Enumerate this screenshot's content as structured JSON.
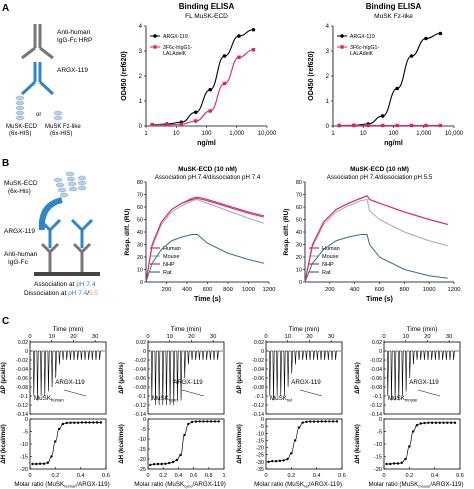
{
  "panel_letters": {
    "a": "A",
    "b": "B",
    "c": "C"
  },
  "schematic_a": {
    "anti_human_1": "Anti-human",
    "anti_human_2": "IgG-Fc HRP",
    "argx": "ARGX-119",
    "or": "or",
    "ecd_1": "MuSK-ECD",
    "ecd_2": "(6x-HIS)",
    "fz_1": "MuSK Fz-like",
    "fz_2": "(6x-HIS)"
  },
  "schematic_b": {
    "musk_1": "MuSK-ECD",
    "musk_2": "(6x-His)",
    "argx": "ARGX-119",
    "anti_1": "Anti-human",
    "anti_2": "IgG-Fc",
    "assoc_prefix": "Association at ",
    "assoc_ph": "pH 7.4",
    "dissoc_prefix": "Dissociation at ",
    "dissoc_ph1": "pH 7.4",
    "dissoc_sep": "/",
    "dissoc_ph2": "5.5"
  },
  "colors": {
    "argx": "#000000",
    "control": "#e0206e",
    "human": "#b4368a",
    "mouse": "#aaaaaa",
    "nhp": "#e0206e",
    "rat": "#3a6e8c",
    "schematic_blue": "#2e86c8",
    "ph74": "#2e86c8",
    "ph55": "#f0a030"
  },
  "chart_data": [
    {
      "type": "line",
      "title": "Binding ELISA",
      "subtitle": "FL MuSK-ECD",
      "xlabel": "ng/ml",
      "ylabel": "OD450 (ref620)",
      "xscale": "log",
      "xlim": [
        1,
        10000
      ],
      "xticks": [
        1,
        10,
        100,
        1000,
        10000
      ],
      "xtick_labels": [
        "1",
        "10",
        "100",
        "1,000",
        "10,000"
      ],
      "ylim": [
        0,
        4
      ],
      "yticks": [
        0,
        1,
        2,
        3,
        4
      ],
      "legend": "top-left",
      "series": [
        {
          "name": "ARGX-119",
          "x": [
            1.6,
            4.9,
            14.6,
            44,
            132,
            395,
            1185,
            3556
          ],
          "y": [
            0.05,
            0.08,
            0.15,
            0.55,
            1.45,
            2.8,
            3.6,
            3.85
          ]
        },
        {
          "name": "3F6c-hIgG1-LALAdelK",
          "x": [
            1.6,
            4.9,
            14.6,
            44,
            132,
            395,
            1185,
            3556
          ],
          "y": [
            0.05,
            0.05,
            0.07,
            0.2,
            0.6,
            1.7,
            2.75,
            3.05
          ]
        }
      ]
    },
    {
      "type": "line",
      "title": "Binding ELISA",
      "subtitle": "MuSK Fz-like",
      "xlabel": "ng/ml",
      "ylabel": "OD450 (ref620)",
      "xscale": "log",
      "xlim": [
        1,
        10000
      ],
      "xticks": [
        1,
        10,
        100,
        1000,
        10000
      ],
      "xtick_labels": [
        "1",
        "10",
        "100",
        "1,000",
        "10,000"
      ],
      "ylim": [
        0,
        4
      ],
      "yticks": [
        0,
        1,
        2,
        3,
        4
      ],
      "legend": "top-left",
      "series": [
        {
          "name": "ARGX-119",
          "x": [
            1.6,
            4.9,
            14.6,
            44,
            132,
            395,
            1185,
            3556
          ],
          "y": [
            0.02,
            0.03,
            0.08,
            0.4,
            1.5,
            2.8,
            3.5,
            3.7
          ]
        },
        {
          "name": "3F6c-hIgG1-LALAdelK",
          "x": [
            1.6,
            4.9,
            14.6,
            44,
            132,
            395,
            1185,
            3556
          ],
          "y": [
            0.02,
            0.02,
            0.02,
            0.02,
            0.02,
            0.02,
            0.02,
            0.02
          ]
        }
      ]
    },
    {
      "type": "line",
      "title": "MuSK-ECD (10 nM)",
      "subtitle": "Association pH 7.4/dissociation pH 7.4",
      "xlabel": "Time (s)",
      "ylabel": "Resp. diff. (RU)",
      "xlim": [
        0,
        1200
      ],
      "xticks": [
        200,
        400,
        600,
        800,
        1000,
        1200
      ],
      "ylim": [
        0,
        80
      ],
      "yticks": [
        0,
        10,
        20,
        30,
        40,
        50,
        60,
        70,
        80
      ],
      "legend": "bottom-left",
      "series": [
        {
          "name": "Human",
          "x": [
            0,
            60,
            150,
            250,
            350,
            450,
            500,
            600,
            800,
            1000,
            1150
          ],
          "y": [
            0,
            30,
            48,
            58,
            63,
            67,
            68,
            66,
            61,
            56,
            53
          ]
        },
        {
          "name": "Mouse",
          "x": [
            0,
            60,
            150,
            250,
            350,
            450,
            500,
            600,
            800,
            1000,
            1150
          ],
          "y": [
            0,
            28,
            46,
            56,
            61,
            65,
            66,
            63,
            57,
            51,
            47
          ]
        },
        {
          "name": "NHP",
          "x": [
            0,
            60,
            150,
            250,
            350,
            450,
            500,
            600,
            800,
            1000,
            1150
          ],
          "y": [
            0,
            30,
            48,
            58,
            63,
            66,
            67,
            65,
            60,
            55,
            52
          ]
        },
        {
          "name": "Rat",
          "x": [
            0,
            60,
            150,
            250,
            350,
            450,
            500,
            600,
            800,
            1000,
            1150
          ],
          "y": [
            0,
            15,
            26,
            33,
            36,
            38,
            38,
            31,
            23,
            18,
            15
          ]
        }
      ]
    },
    {
      "type": "line",
      "title": "MuSK-ECD (10 nM)",
      "subtitle": "Association pH 7.4/dissociation pH 5.5",
      "xlabel": "Time (s)",
      "ylabel": "Resp. diff. (RU)",
      "xlim": [
        0,
        1200
      ],
      "xticks": [
        200,
        400,
        600,
        800,
        1000,
        1200
      ],
      "ylim": [
        0,
        80
      ],
      "yticks": [
        0,
        10,
        20,
        30,
        40,
        50,
        60,
        70,
        80
      ],
      "legend": "bottom-left",
      "series": [
        {
          "name": "Human",
          "x": [
            0,
            60,
            150,
            250,
            350,
            450,
            500,
            520,
            600,
            800,
            1000,
            1150
          ],
          "y": [
            0,
            30,
            48,
            58,
            63,
            67,
            69,
            66,
            63,
            56,
            50,
            46
          ]
        },
        {
          "name": "Mouse",
          "x": [
            0,
            60,
            150,
            250,
            350,
            450,
            500,
            520,
            600,
            800,
            1000,
            1150
          ],
          "y": [
            0,
            28,
            46,
            56,
            61,
            65,
            66,
            57,
            50,
            40,
            33,
            29
          ]
        },
        {
          "name": "NHP",
          "x": [
            0,
            60,
            150,
            250,
            350,
            450,
            500,
            520,
            600,
            800,
            1000,
            1150
          ],
          "y": [
            0,
            30,
            48,
            58,
            63,
            67,
            69,
            66,
            63,
            56,
            50,
            46
          ]
        },
        {
          "name": "Rat",
          "x": [
            0,
            60,
            150,
            250,
            350,
            450,
            500,
            520,
            600,
            800,
            1000,
            1150
          ],
          "y": [
            0,
            15,
            26,
            33,
            36,
            38,
            38,
            30,
            20,
            10,
            5,
            3
          ]
        }
      ]
    },
    {
      "type": "line",
      "panel": "ITC",
      "top": {
        "xlabel": "Time (min)",
        "ylabel": "ΔP (µcal/s)",
        "xlim": [
          0,
          35
        ],
        "xticks": [
          0,
          10,
          20,
          30
        ],
        "ylim": [
          -0.14,
          0.02
        ],
        "yticks": [
          0.02,
          0.0,
          -0.02,
          -0.04,
          -0.06,
          -0.08,
          -0.1,
          -0.12,
          -0.14
        ],
        "ytick_labels": [
          "0.02",
          "0",
          "-0.02",
          "-0.04",
          "-0.06",
          "-0.08",
          "-0.1",
          "-0.12",
          "-0.14"
        ],
        "inset_label": "ARGX-119",
        "inset_sub": "MuSK",
        "inset_sub_index": "human",
        "injections": 19,
        "peak_depths": [
          -0.1,
          -0.11,
          -0.1,
          -0.1,
          -0.09,
          -0.08,
          -0.06,
          -0.03,
          -0.02,
          -0.02,
          -0.02,
          -0.02,
          -0.02,
          -0.02,
          -0.02,
          -0.02,
          -0.02,
          -0.02,
          -0.02
        ]
      },
      "bottom": {
        "xlabel_prefix": "Molar ratio (MuSK",
        "xlabel_index": "human",
        "xlabel_suffix": "/ARGX-119)",
        "ylabel": "ΔH (kcal/mol)",
        "xlim": [
          0,
          0.6
        ],
        "xticks": [
          0,
          0.2,
          0.4,
          0.6
        ],
        "ylim": [
          -20,
          0
        ],
        "yticks": [
          0,
          -5,
          -10,
          -15,
          -20
        ],
        "x": [
          0.02,
          0.05,
          0.08,
          0.11,
          0.14,
          0.17,
          0.2,
          0.23,
          0.26,
          0.29,
          0.32,
          0.35,
          0.38,
          0.41,
          0.44,
          0.47,
          0.5,
          0.53,
          0.56
        ],
        "y": [
          -18,
          -18,
          -17.9,
          -17.9,
          -17.5,
          -15,
          -9,
          -4,
          -2,
          -1.6,
          -1.5,
          -1.5,
          -1.5,
          -1.4,
          -1.4,
          -1.4,
          -1.4,
          -1.4,
          -1.4
        ]
      }
    },
    {
      "type": "line",
      "panel": "ITC",
      "top": {
        "xlabel": "Time (min)",
        "ylabel": "ΔP (µcal/s)",
        "xlim": [
          0,
          35
        ],
        "xticks": [
          0,
          10,
          20,
          30
        ],
        "ylim": [
          -0.14,
          0.02
        ],
        "yticks": [
          0.02,
          0.0,
          -0.02,
          -0.04,
          -0.06,
          -0.08,
          -0.1,
          -0.12,
          -0.14
        ],
        "ytick_labels": [
          "0.02",
          "0",
          "-0.02",
          "-0.04",
          "-0.06",
          "-0.08",
          "-0.1",
          "-0.12",
          "-0.14"
        ],
        "inset_label": "ARGX-119",
        "inset_sub": "MuSK",
        "inset_sub_index": "cyno",
        "injections": 19,
        "peak_depths": [
          -0.11,
          -0.12,
          -0.12,
          -0.12,
          -0.12,
          -0.12,
          -0.12,
          -0.11,
          -0.11,
          -0.06,
          -0.03,
          -0.02,
          -0.02,
          -0.02,
          -0.02,
          -0.02,
          -0.02,
          -0.02,
          -0.02
        ]
      },
      "bottom": {
        "xlabel_prefix": "Molar ratio (MuSK",
        "xlabel_index": "cyno",
        "xlabel_suffix": "/ARGX-119)",
        "ylabel": "ΔH (kcal/mol)",
        "xlim": [
          0,
          1
        ],
        "xticks": [
          0,
          0.2,
          0.4,
          0.6,
          0.8,
          1
        ],
        "ylim": [
          -25,
          0
        ],
        "yticks": [
          0,
          -5,
          -10,
          -15,
          -20,
          -25
        ],
        "x": [
          0.03,
          0.08,
          0.13,
          0.18,
          0.23,
          0.28,
          0.33,
          0.38,
          0.43,
          0.48,
          0.53,
          0.58,
          0.63,
          0.68,
          0.73,
          0.78,
          0.83,
          0.88,
          0.93
        ],
        "y": [
          -23,
          -22.6,
          -22.5,
          -22.5,
          -22.4,
          -22,
          -21.5,
          -20.5,
          -18,
          -8,
          -2.5,
          -1.5,
          -1.3,
          -1.2,
          -1.2,
          -1.2,
          -1.2,
          -1.2,
          -1.2
        ]
      }
    },
    {
      "type": "line",
      "panel": "ITC",
      "top": {
        "xlabel": "Time (min)",
        "ylabel": "ΔP (µcal/s)",
        "xlim": [
          0,
          35
        ],
        "xticks": [
          0,
          10,
          20,
          30
        ],
        "ylim": [
          -0.14,
          0.02
        ],
        "yticks": [
          0.02,
          0.0,
          -0.02,
          -0.04,
          -0.06,
          -0.08,
          -0.1,
          -0.12,
          -0.14
        ],
        "ytick_labels": [
          "0.02",
          "0",
          "-0.02",
          "-0.04",
          "-0.06",
          "-0.08",
          "-0.1",
          "-0.12",
          "-0.14"
        ],
        "inset_label": "ARGX-119",
        "inset_sub": "MuSK",
        "inset_sub_index": "rat",
        "injections": 19,
        "peak_depths": [
          -0.1,
          -0.11,
          -0.1,
          -0.1,
          -0.1,
          -0.08,
          -0.05,
          -0.03,
          -0.02,
          -0.02,
          -0.02,
          -0.02,
          -0.02,
          -0.02,
          -0.02,
          -0.02,
          -0.02,
          -0.02,
          -0.02
        ]
      },
      "bottom": {
        "xlabel_prefix": "Molar ratio (MuSK",
        "xlabel_index": "rat",
        "xlabel_suffix": "/ARGX-119)",
        "ylabel": "ΔH (kcal/mol)",
        "xlim": [
          0,
          0.6
        ],
        "xticks": [
          0,
          0.2,
          0.4,
          0.6
        ],
        "ylim": [
          -35,
          0
        ],
        "yticks": [
          0,
          -5,
          -10,
          -15,
          -20,
          -25,
          -30,
          -35
        ],
        "x": [
          0.02,
          0.05,
          0.08,
          0.11,
          0.14,
          0.17,
          0.2,
          0.23,
          0.26,
          0.29,
          0.32,
          0.35,
          0.38,
          0.41,
          0.44,
          0.47,
          0.5,
          0.53,
          0.56
        ],
        "y": [
          -30,
          -29.5,
          -29.5,
          -29.3,
          -29,
          -28,
          -24,
          -15,
          -6,
          -2.5,
          -2,
          -1.8,
          -1.8,
          -1.8,
          -1.7,
          -1.7,
          -1.7,
          -1.7,
          -1.7
        ]
      }
    },
    {
      "type": "line",
      "panel": "ITC",
      "top": {
        "xlabel": "Time (min)",
        "ylabel": "ΔP (µcal/s)",
        "xlim": [
          0,
          35
        ],
        "xticks": [
          0,
          10,
          20,
          30
        ],
        "ylim": [
          -0.14,
          0.02
        ],
        "yticks": [
          0.02,
          0.0,
          -0.02,
          -0.04,
          -0.06,
          -0.08,
          -0.1,
          -0.12,
          -0.14
        ],
        "ytick_labels": [
          "0.02",
          "0",
          "-0.02",
          "-0.04",
          "-0.06",
          "-0.08",
          "-0.1",
          "-0.12",
          "-0.14"
        ],
        "inset_label": "ARGX-119",
        "inset_sub": "MuSK",
        "inset_sub_index": "mouse",
        "injections": 19,
        "peak_depths": [
          -0.1,
          -0.11,
          -0.11,
          -0.11,
          -0.1,
          -0.09,
          -0.06,
          -0.03,
          -0.02,
          -0.02,
          -0.02,
          -0.02,
          -0.02,
          -0.02,
          -0.02,
          -0.02,
          -0.02,
          -0.02,
          -0.02
        ]
      },
      "bottom": {
        "xlabel_prefix": "Molar ratio (MuSK",
        "xlabel_index": "mouse",
        "xlabel_suffix": "/ARGX-119)",
        "ylabel": "ΔH (kcal/mol)",
        "xlim": [
          0,
          0.6
        ],
        "xticks": [
          0,
          0.2,
          0.4,
          0.6
        ],
        "ylim": [
          -20,
          0
        ],
        "yticks": [
          0,
          -5,
          -10,
          -15,
          -20
        ],
        "x": [
          0.02,
          0.05,
          0.08,
          0.11,
          0.14,
          0.17,
          0.2,
          0.23,
          0.26,
          0.29,
          0.32,
          0.35,
          0.38,
          0.41,
          0.44,
          0.47,
          0.5,
          0.53,
          0.56
        ],
        "y": [
          -18,
          -18,
          -17.8,
          -17.8,
          -17.5,
          -16,
          -11,
          -5,
          -2.5,
          -1.8,
          -1.6,
          -1.5,
          -1.5,
          -1.5,
          -1.5,
          -1.5,
          -1.5,
          -1.5,
          -1.5
        ]
      }
    }
  ]
}
